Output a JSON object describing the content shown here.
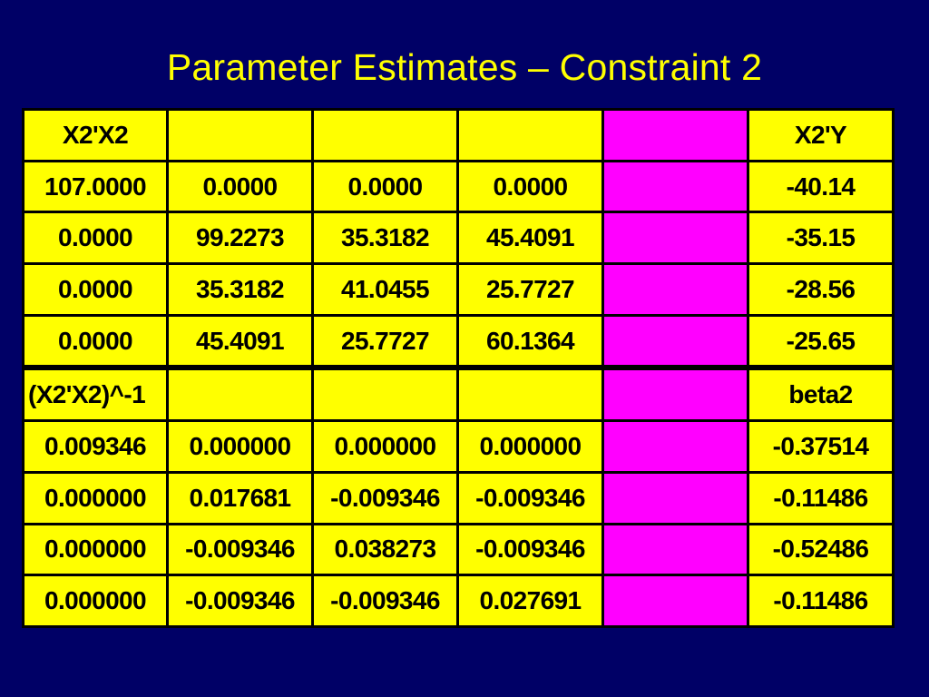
{
  "title": "Parameter Estimates – Constraint 2",
  "xtx": {
    "label": "X2'X2",
    "rhs_label": "X2'Y",
    "rows": [
      [
        "107.0000",
        "0.0000",
        "0.0000",
        "0.0000",
        "-40.14"
      ],
      [
        "0.0000",
        "99.2273",
        "35.3182",
        "45.4091",
        "-35.15"
      ],
      [
        "0.0000",
        "35.3182",
        "41.0455",
        "25.7727",
        "-28.56"
      ],
      [
        "0.0000",
        "45.4091",
        "25.7727",
        "60.1364",
        "-25.65"
      ]
    ]
  },
  "inverse": {
    "label": "(X2'X2)^-1",
    "rhs_label": "beta2",
    "rows": [
      [
        "0.009346",
        "0.000000",
        "0.000000",
        "0.000000",
        "-0.37514"
      ],
      [
        "0.000000",
        "0.017681",
        "-0.009346",
        "-0.009346",
        "-0.11486"
      ],
      [
        "0.000000",
        "-0.009346",
        "0.038273",
        "-0.009346",
        "-0.52486"
      ],
      [
        "0.000000",
        "-0.009346",
        "-0.009346",
        "0.027691",
        "-0.11486"
      ]
    ]
  },
  "colors": {
    "background": "#000066",
    "title": "#ffff00",
    "cell": "#ffff00",
    "separator": "#ff00ff"
  }
}
